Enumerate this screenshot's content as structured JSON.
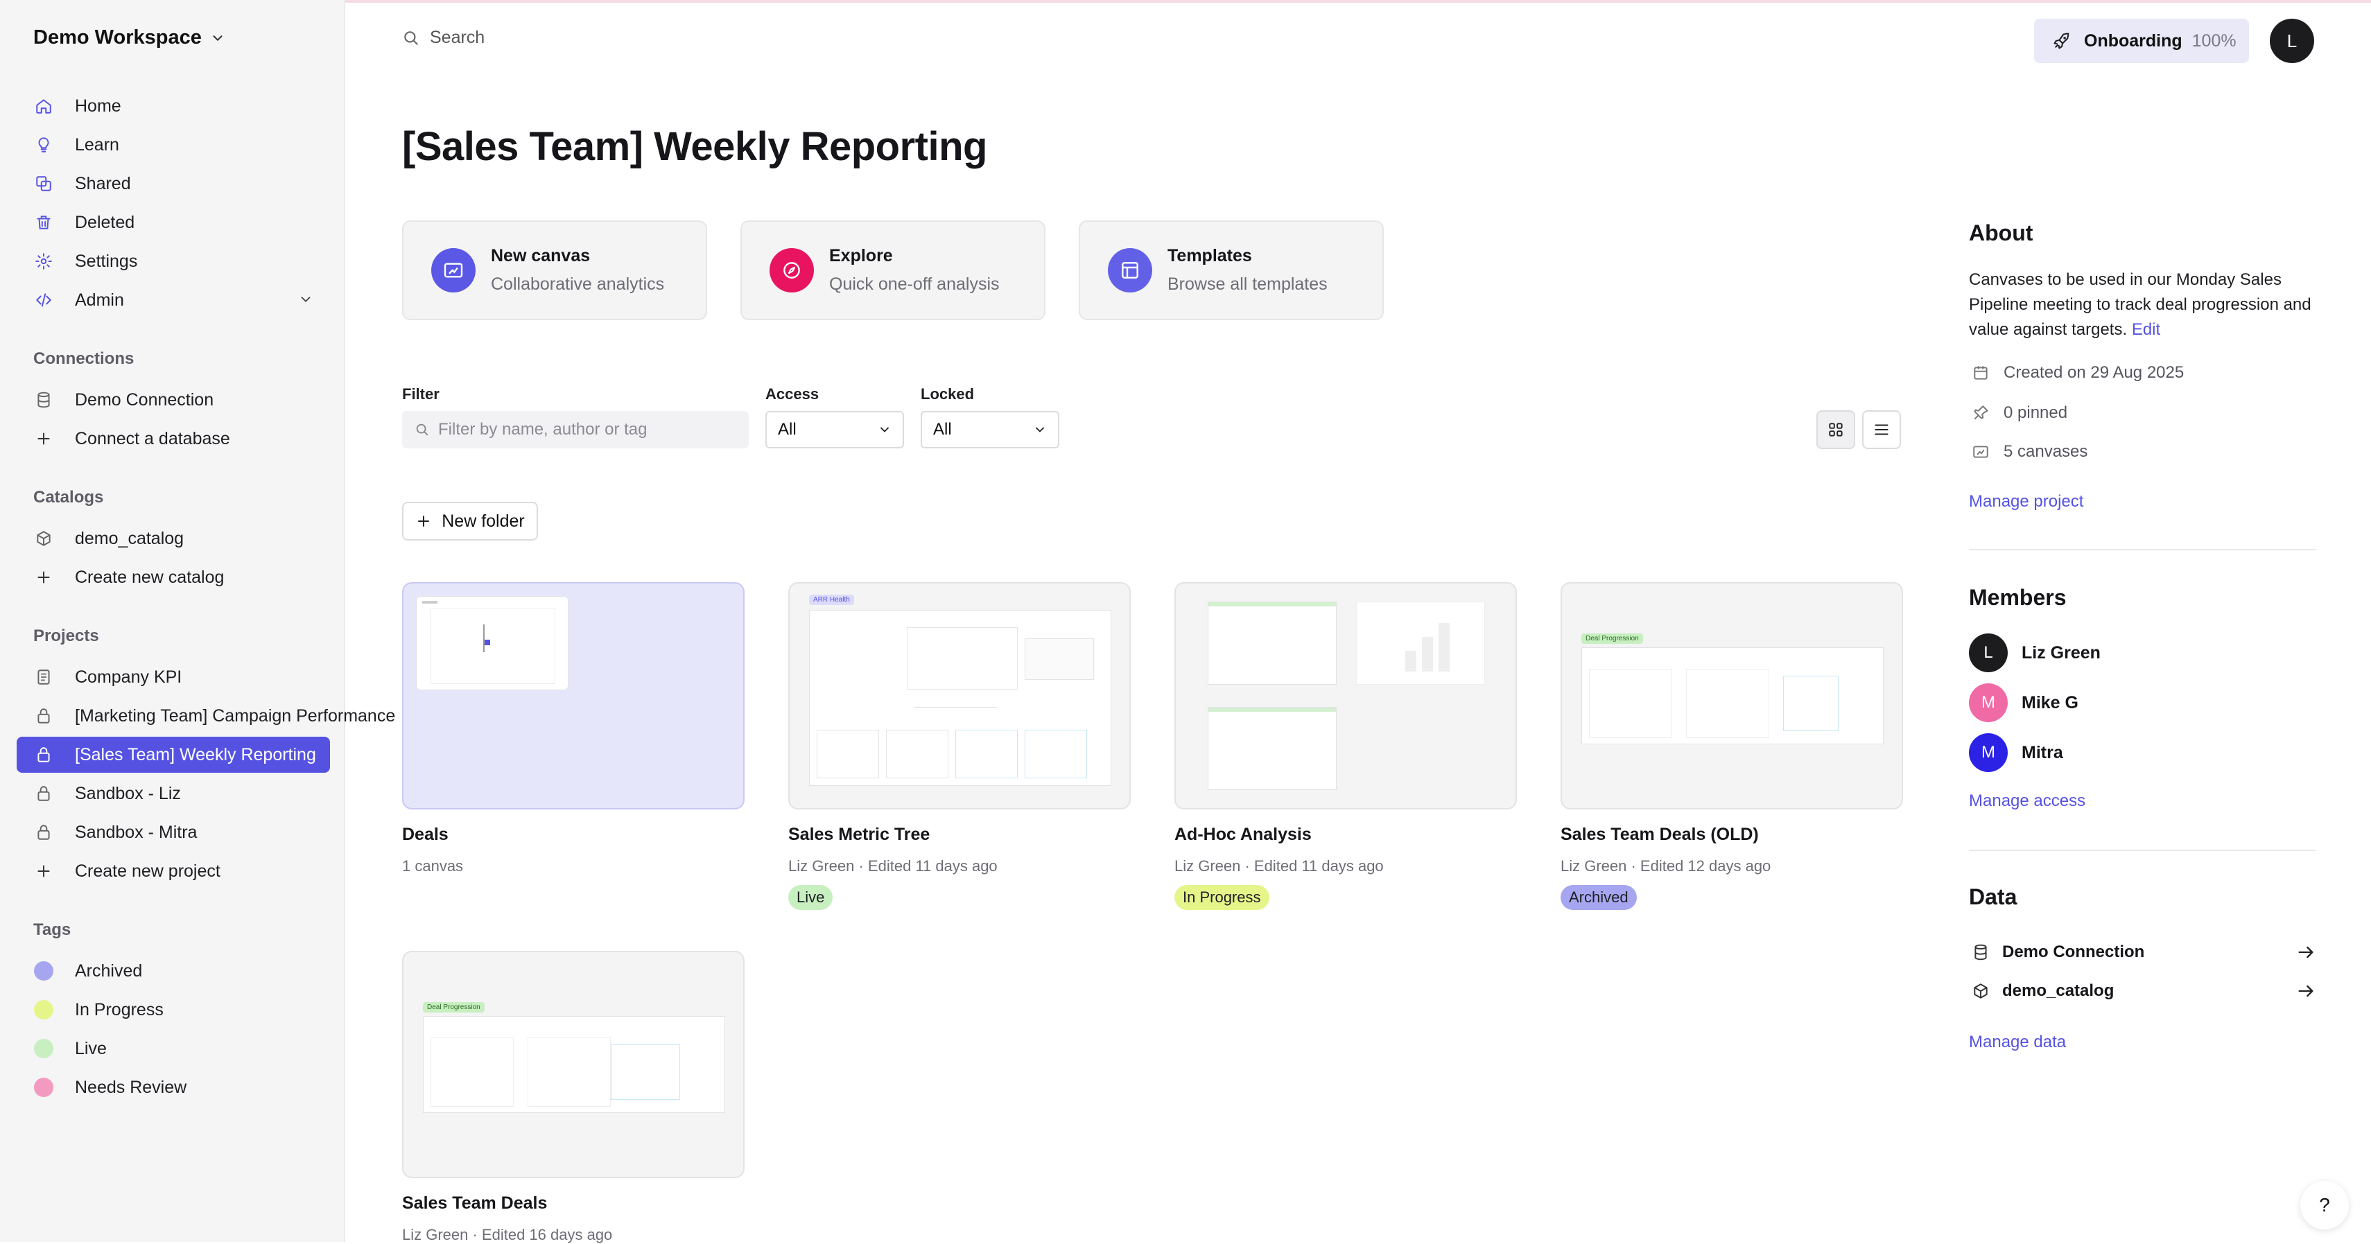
{
  "workspace": {
    "name": "Demo Workspace"
  },
  "sidebar": {
    "nav": [
      {
        "label": "Home",
        "icon": "home-icon"
      },
      {
        "label": "Learn",
        "icon": "lightbulb-icon"
      },
      {
        "label": "Shared",
        "icon": "shared-icon"
      },
      {
        "label": "Deleted",
        "icon": "trash-icon"
      },
      {
        "label": "Settings",
        "icon": "gear-icon"
      },
      {
        "label": "Admin",
        "icon": "code-icon"
      }
    ],
    "connections": {
      "heading": "Connections",
      "items": [
        "Demo Connection",
        "Connect a database"
      ]
    },
    "catalogs": {
      "heading": "Catalogs",
      "items": [
        "demo_catalog",
        "Create new catalog"
      ]
    },
    "projects": {
      "heading": "Projects",
      "items": [
        "Company KPI",
        "[Marketing Team] Campaign Performance",
        "[Sales Team] Weekly Reporting",
        "Sandbox - Liz",
        "Sandbox - Mitra",
        "Create new project"
      ],
      "active_index": 2
    },
    "tags": {
      "heading": "Tags",
      "items": [
        {
          "label": "Archived",
          "color": "#a6a6f0"
        },
        {
          "label": "In Progress",
          "color": "#e6f58a"
        },
        {
          "label": "Live",
          "color": "#c7efc0"
        },
        {
          "label": "Needs Review",
          "color": "#f39ac0"
        }
      ]
    }
  },
  "topbar": {
    "search_placeholder": "Search",
    "onboarding_label": "Onboarding",
    "onboarding_progress": "100%",
    "avatar_initial": "L"
  },
  "page": {
    "title": "[Sales Team] Weekly Reporting"
  },
  "quick_actions": [
    {
      "title": "New canvas",
      "subtitle": "Collaborative analytics",
      "icon": "canvas-icon",
      "color": "#5b58e6"
    },
    {
      "title": "Explore",
      "subtitle": "Quick one-off analysis",
      "icon": "compass-icon",
      "color": "#e8145f"
    },
    {
      "title": "Templates",
      "subtitle": "Browse all templates",
      "icon": "template-icon",
      "color": "#6360e8"
    }
  ],
  "filters": {
    "filter_label": "Filter",
    "filter_placeholder": "Filter by name, author or tag",
    "access_label": "Access",
    "access_value": "All",
    "locked_label": "Locked",
    "locked_value": "All"
  },
  "new_folder_label": "New folder",
  "cards": [
    {
      "name": "Deals",
      "meta": "1 canvas",
      "type": "folder",
      "badge": ""
    },
    {
      "name": "Sales Metric Tree",
      "meta": "Liz Green · Edited 11 days ago",
      "badge": "Live",
      "badge_color": "#c7efc0",
      "preview_tag": "ARR Health"
    },
    {
      "name": "Ad-Hoc Analysis",
      "meta": "Liz Green · Edited 11 days ago",
      "badge": "In Progress",
      "badge_color": "#e6f58a"
    },
    {
      "name": "Sales Team Deals (OLD)",
      "meta": "Liz Green · Edited 12 days ago",
      "badge": "Archived",
      "badge_color": "#a6a6f0",
      "preview_tag": "Deal Progression"
    },
    {
      "name": "Sales Team Deals",
      "meta": "Liz Green · Edited 16 days ago",
      "badge": "",
      "preview_tag": "Deal Progression"
    }
  ],
  "about": {
    "heading": "About",
    "description": "Canvases to be used in our Monday Sales Pipeline meeting to track deal progression and value against targets.",
    "edit_label": "Edit",
    "created": "Created on 29 Aug 2025",
    "pinned": "0 pinned",
    "canvases": "5 canvases",
    "manage_label": "Manage project"
  },
  "members": {
    "heading": "Members",
    "items": [
      {
        "initial": "L",
        "name": "Liz Green",
        "color": "#1c1c1f"
      },
      {
        "initial": "M",
        "name": "Mike G",
        "color": "#f06aa6"
      },
      {
        "initial": "M",
        "name": "Mitra",
        "color": "#2b22e6"
      }
    ],
    "manage_label": "Manage access"
  },
  "data_section": {
    "heading": "Data",
    "items": [
      "Demo Connection",
      "demo_catalog"
    ],
    "manage_label": "Manage data"
  },
  "help_label": "?"
}
